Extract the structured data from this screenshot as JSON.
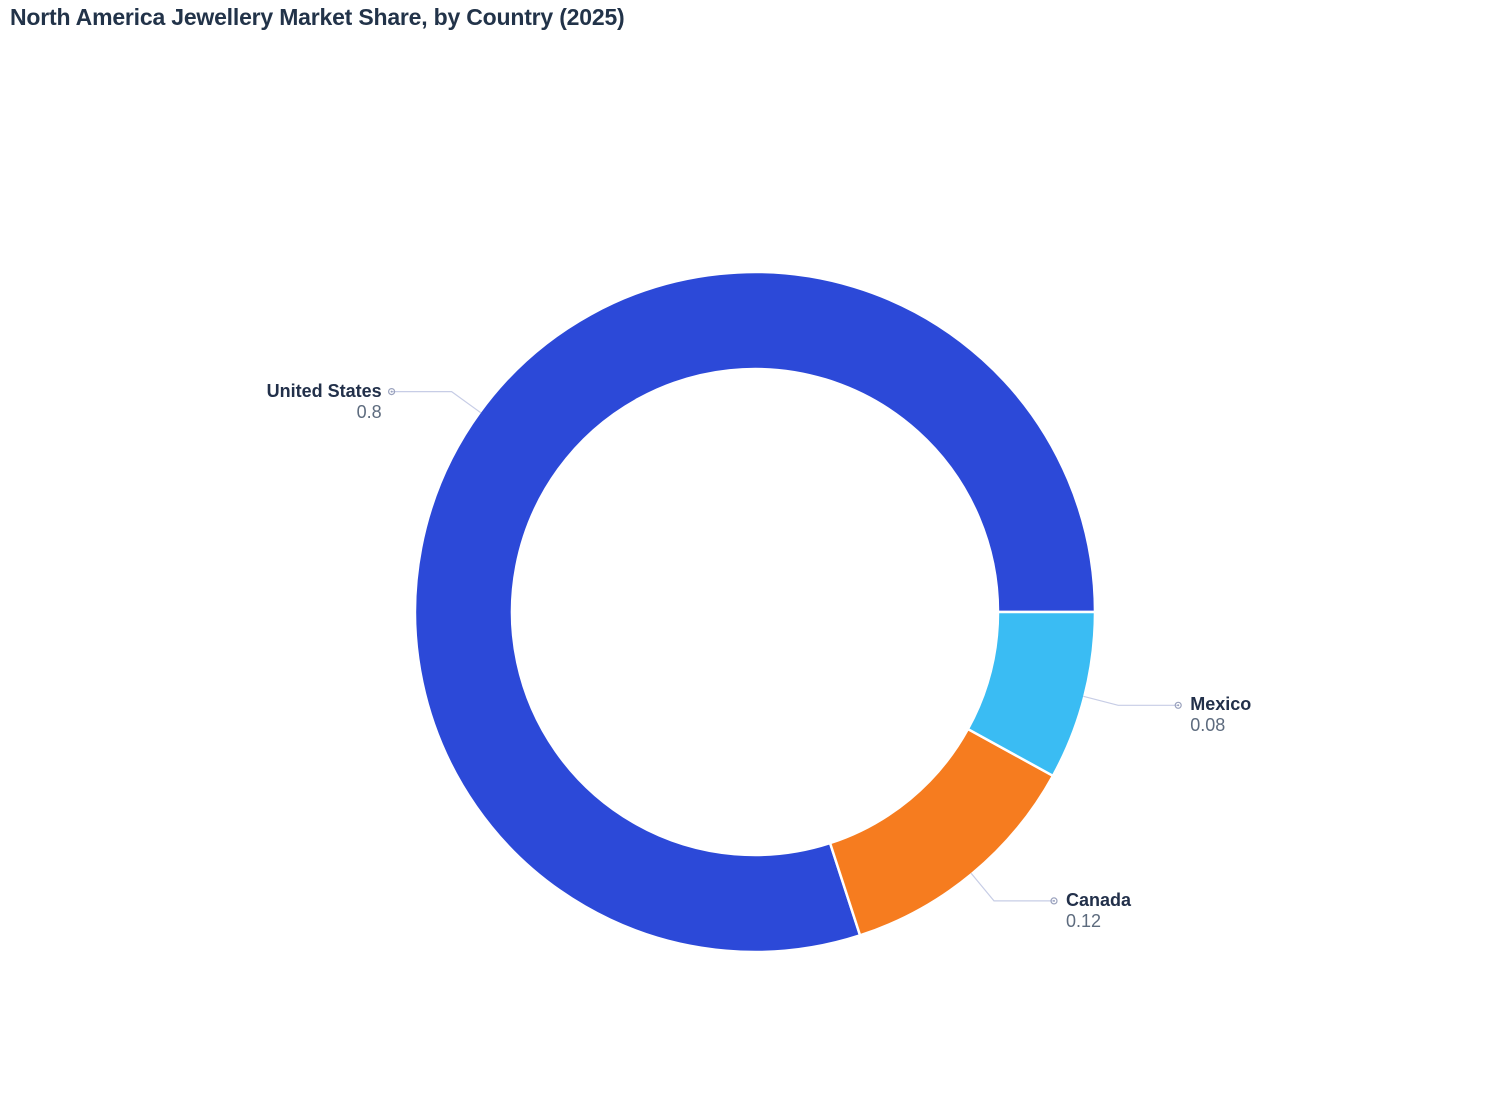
{
  "title": "North America Jewellery Market Share, by Country (2025)",
  "chart_data": {
    "type": "pie",
    "subtype": "donut",
    "title": "North America Jewellery Market Share, by Country (2025)",
    "legend": "none",
    "labels": "outside-with-leader-lines",
    "start_angle_deg": 0,
    "direction": "counterclockwise",
    "inner_radius_ratio": 0.715,
    "slices": [
      {
        "label": "United States",
        "value": 0.8,
        "color": "#2C49D8"
      },
      {
        "label": "Canada",
        "value": 0.12,
        "color": "#F67C1F"
      },
      {
        "label": "Mexico",
        "value": 0.08,
        "color": "#3ABCF3"
      }
    ]
  },
  "colors": {
    "title_text": "#223349",
    "label_text": "#22304A",
    "value_text": "#5D6B7E",
    "leader_line": "#C7CDE6",
    "leader_dot": "#9AA2BD",
    "slice_border": "#FFFFFF",
    "background": "#FFFFFF"
  }
}
